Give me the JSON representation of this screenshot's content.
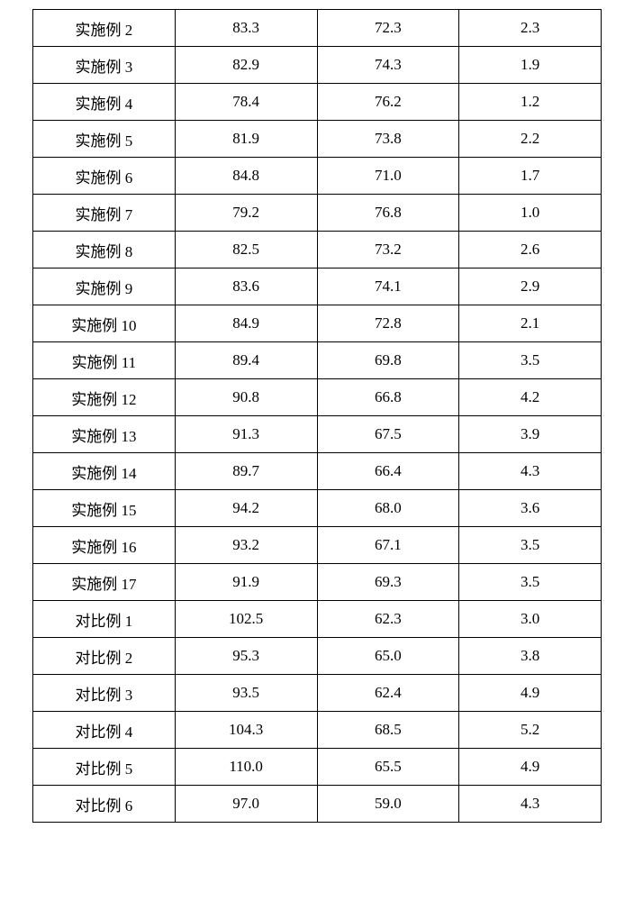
{
  "table": {
    "type": "table",
    "border_color": "#000000",
    "background_color": "#ffffff",
    "text_color": "#000000",
    "font_family": "SimSun",
    "font_size_pt": 13,
    "column_widths_pct": [
      25,
      25,
      25,
      25
    ],
    "column_align": [
      "center",
      "center",
      "center",
      "center"
    ],
    "rows": [
      [
        "实施例 2",
        "83.3",
        "72.3",
        "2.3"
      ],
      [
        "实施例 3",
        "82.9",
        "74.3",
        "1.9"
      ],
      [
        "实施例 4",
        "78.4",
        "76.2",
        "1.2"
      ],
      [
        "实施例 5",
        "81.9",
        "73.8",
        "2.2"
      ],
      [
        "实施例 6",
        "84.8",
        "71.0",
        "1.7"
      ],
      [
        "实施例 7",
        "79.2",
        "76.8",
        "1.0"
      ],
      [
        "实施例 8",
        "82.5",
        "73.2",
        "2.6"
      ],
      [
        "实施例 9",
        "83.6",
        "74.1",
        "2.9"
      ],
      [
        "实施例 10",
        "84.9",
        "72.8",
        "2.1"
      ],
      [
        "实施例 11",
        "89.4",
        "69.8",
        "3.5"
      ],
      [
        "实施例 12",
        "90.8",
        "66.8",
        "4.2"
      ],
      [
        "实施例 13",
        "91.3",
        "67.5",
        "3.9"
      ],
      [
        "实施例 14",
        "89.7",
        "66.4",
        "4.3"
      ],
      [
        "实施例 15",
        "94.2",
        "68.0",
        "3.6"
      ],
      [
        "实施例 16",
        "93.2",
        "67.1",
        "3.5"
      ],
      [
        "实施例 17",
        "91.9",
        "69.3",
        "3.5"
      ],
      [
        "对比例 1",
        "102.5",
        "62.3",
        "3.0"
      ],
      [
        "对比例 2",
        "95.3",
        "65.0",
        "3.8"
      ],
      [
        "对比例 3",
        "93.5",
        "62.4",
        "4.9"
      ],
      [
        "对比例 4",
        "104.3",
        "68.5",
        "5.2"
      ],
      [
        "对比例 5",
        "110.0",
        "65.5",
        "4.9"
      ],
      [
        "对比例 6",
        "97.0",
        "59.0",
        "4.3"
      ]
    ]
  }
}
